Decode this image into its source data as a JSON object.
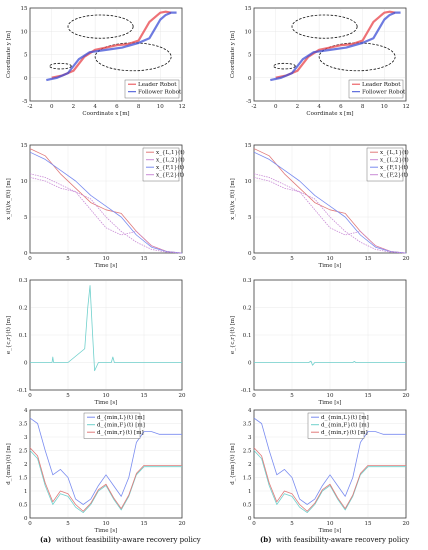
{
  "colors": {
    "leader": "#e8434a",
    "follower": "#3d4fd6",
    "c1": "#e07a7a",
    "c2": "#c98bd6",
    "c3": "#7a8cf0",
    "c4": "#6fd0cc"
  },
  "captions": [
    {
      "tag": "(a)",
      "text": "without feasibility-aware recovery policy"
    },
    {
      "tag": "(b)",
      "text": "with feasibility-aware recovery policy"
    }
  ],
  "chart_data": [
    {
      "id": "traj-a",
      "type": "line",
      "xlabel": "Coordinate x [m]",
      "ylabel": "Coordinate y [m]",
      "xlim": [
        -2,
        12
      ],
      "ylim": [
        -5,
        15
      ],
      "xticks": [
        "-2",
        "0",
        "2",
        "4",
        "6",
        "8",
        "10",
        "12"
      ],
      "yticks": [
        "-5",
        "0",
        "5",
        "10",
        "15"
      ],
      "legend": {
        "position": "bottom-right",
        "entries": [
          "Leader Robot",
          "Follower Robot"
        ]
      },
      "ellipses": [
        {
          "cx": 4.5,
          "cy": 11,
          "rx": 3,
          "ry": 2.5
        },
        {
          "cx": 7.5,
          "cy": 4.5,
          "rx": 3.5,
          "ry": 3
        },
        {
          "cx": 0.8,
          "cy": 2.5,
          "rx": 1,
          "ry": 0.6
        }
      ],
      "series": [
        {
          "name": "Leader Robot",
          "x": [
            0,
            1,
            2,
            2.5,
            3,
            4,
            5,
            6,
            7,
            8,
            8.5,
            9,
            9.5,
            10,
            10.5,
            11
          ],
          "y": [
            0,
            0.5,
            1.5,
            3,
            4.5,
            6,
            6.5,
            7,
            7.2,
            8,
            10,
            12,
            13,
            14,
            14.2,
            14
          ]
        },
        {
          "name": "Follower Robot",
          "x": [
            -0.5,
            0.5,
            1.5,
            2,
            2.5,
            3.5,
            5,
            6.5,
            8,
            9,
            9.5,
            10,
            10.5,
            11,
            11.5
          ],
          "y": [
            -0.5,
            0,
            1,
            2.5,
            4,
            5.5,
            6,
            6.5,
            7.5,
            8.5,
            10.5,
            12.5,
            13.5,
            14,
            14
          ]
        }
      ]
    },
    {
      "id": "traj-b",
      "type": "line",
      "xlabel": "Coordinate x [m]",
      "ylabel": "Coordinate y [m]",
      "xlim": [
        -2,
        12
      ],
      "ylim": [
        -5,
        15
      ],
      "xticks": [
        "-2",
        "0",
        "2",
        "4",
        "6",
        "8",
        "10",
        "12"
      ],
      "yticks": [
        "-5",
        "0",
        "5",
        "10",
        "15"
      ],
      "legend": {
        "position": "bottom-right",
        "entries": [
          "Leader Robot",
          "Follower Robot"
        ]
      },
      "ellipses": [
        {
          "cx": 4.5,
          "cy": 11,
          "rx": 3,
          "ry": 2.5
        },
        {
          "cx": 7.5,
          "cy": 4.5,
          "rx": 3.5,
          "ry": 3
        },
        {
          "cx": 0.8,
          "cy": 2.5,
          "rx": 1,
          "ry": 0.6
        }
      ],
      "series": [
        {
          "name": "Leader Robot",
          "x": [
            0,
            1,
            2,
            2.5,
            3,
            4,
            5,
            6,
            7,
            8,
            8.5,
            9,
            9.5,
            10,
            10.5,
            11
          ],
          "y": [
            0,
            0.5,
            1.5,
            3,
            4.5,
            6,
            6.5,
            7,
            7.2,
            8,
            10,
            12,
            13,
            14,
            14.2,
            14
          ]
        },
        {
          "name": "Follower Robot",
          "x": [
            -0.5,
            0.5,
            1.5,
            2,
            2.5,
            3.5,
            5,
            6.5,
            8,
            9,
            9.5,
            10,
            10.5,
            11,
            11.5
          ],
          "y": [
            -0.5,
            0,
            1,
            2.5,
            4,
            5.5,
            6,
            6.5,
            7.5,
            8.5,
            10.5,
            12.5,
            13.5,
            14,
            14
          ]
        }
      ]
    },
    {
      "id": "pos-a",
      "type": "line",
      "xlabel": "Time [s]",
      "ylabel": "x_i(t)/x_f(t) [m]",
      "xlim": [
        0,
        20
      ],
      "ylim": [
        0,
        15
      ],
      "xticks": [
        "0",
        "5",
        "10",
        "15",
        "20"
      ],
      "yticks": [
        "0",
        "5",
        "10",
        "15"
      ],
      "legend": {
        "position": "top-right",
        "entries": [
          "x_{L,1}(t)",
          "x_{L,2}(t)",
          "x_{F,1}(t)",
          "x_{F,2}(t)"
        ]
      },
      "series": [
        {
          "name": "x_{L,1}(t)",
          "x": [
            0,
            2,
            4,
            6,
            8,
            10,
            12,
            14,
            16,
            18,
            20
          ],
          "y": [
            14.5,
            13.5,
            11,
            9,
            7,
            6,
            5.5,
            3,
            1,
            0.2,
            0
          ]
        },
        {
          "name": "x_{L,2}(t)",
          "x": [
            0,
            2,
            4,
            6,
            8,
            10,
            12,
            14,
            16,
            18,
            20
          ],
          "y": [
            11,
            10.5,
            9.5,
            8.5,
            7.5,
            5,
            3,
            1.5,
            0.5,
            0.1,
            0
          ]
        },
        {
          "name": "x_{F,1}(t)",
          "x": [
            0,
            2,
            4,
            6,
            8,
            10,
            12,
            14,
            16,
            18,
            20
          ],
          "y": [
            14,
            13,
            11.5,
            10,
            8,
            6.5,
            5,
            2.5,
            0.8,
            0.2,
            0
          ]
        },
        {
          "name": "x_{F,2}(t)",
          "x": [
            0,
            2,
            4,
            6,
            8,
            10,
            12,
            14,
            16,
            18,
            20
          ],
          "y": [
            10.5,
            10,
            9,
            8.5,
            6,
            3.5,
            2.5,
            3,
            1,
            0.2,
            0
          ]
        }
      ]
    },
    {
      "id": "pos-b",
      "type": "line",
      "xlabel": "Time [s]",
      "ylabel": "x_i(t)/x_f(t) [m]",
      "xlim": [
        0,
        20
      ],
      "ylim": [
        0,
        15
      ],
      "xticks": [
        "0",
        "5",
        "10",
        "15",
        "20"
      ],
      "yticks": [
        "0",
        "5",
        "10",
        "15"
      ],
      "legend": {
        "position": "top-right",
        "entries": [
          "x_{L,1}(t)",
          "x_{L,2}(t)",
          "x_{F,1}(t)",
          "x_{F,2}(t)"
        ]
      },
      "series": [
        {
          "name": "x_{L,1}(t)",
          "x": [
            0,
            2,
            4,
            6,
            8,
            10,
            12,
            14,
            16,
            18,
            20
          ],
          "y": [
            14.5,
            13.5,
            11,
            9,
            7,
            6,
            5.5,
            3,
            1,
            0.2,
            0
          ]
        },
        {
          "name": "x_{L,2}(t)",
          "x": [
            0,
            2,
            4,
            6,
            8,
            10,
            12,
            14,
            16,
            18,
            20
          ],
          "y": [
            11,
            10.5,
            9.5,
            8.5,
            7.5,
            5,
            3,
            1.5,
            0.5,
            0.1,
            0
          ]
        },
        {
          "name": "x_{F,1}(t)",
          "x": [
            0,
            2,
            4,
            6,
            8,
            10,
            12,
            14,
            16,
            18,
            20
          ],
          "y": [
            14,
            13,
            11.5,
            10,
            8,
            6.5,
            5,
            2.5,
            0.8,
            0.2,
            0
          ]
        },
        {
          "name": "x_{F,2}(t)",
          "x": [
            0,
            2,
            4,
            6,
            8,
            10,
            12,
            14,
            16,
            18,
            20
          ],
          "y": [
            10.5,
            10,
            9,
            8.5,
            6,
            3.5,
            2.5,
            3,
            1,
            0.2,
            0
          ]
        }
      ]
    },
    {
      "id": "err-a",
      "type": "line",
      "xlabel": "Time [s]",
      "ylabel": "e_{c,r}(t) [m]",
      "xlim": [
        0,
        20
      ],
      "ylim": [
        -0.1,
        0.3
      ],
      "xticks": [
        "0",
        "5",
        "10",
        "15",
        "20"
      ],
      "yticks": [
        "-0.1",
        "0",
        "0.1",
        "0.2",
        "0.3"
      ],
      "series": [
        {
          "x": [
            0,
            2.9,
            3,
            3.1,
            5,
            7.2,
            7.6,
            7.9,
            8.2,
            8.5,
            9,
            10.7,
            10.9,
            11.1,
            13,
            20
          ],
          "y": [
            0,
            0,
            0.02,
            0,
            0,
            0.05,
            0.2,
            0.28,
            0.12,
            -0.03,
            0,
            0,
            0.02,
            0,
            0,
            0
          ]
        }
      ]
    },
    {
      "id": "err-b",
      "type": "line",
      "xlabel": "Time [s]",
      "ylabel": "e_{c,r}(t) [m]",
      "xlim": [
        0,
        20
      ],
      "ylim": [
        -0.1,
        0.3
      ],
      "xticks": [
        "0",
        "5",
        "10",
        "15",
        "20"
      ],
      "yticks": [
        "-0.1",
        "0",
        "0.1",
        "0.2",
        "0.3"
      ],
      "series": [
        {
          "x": [
            0,
            7.2,
            7.5,
            7.7,
            8,
            13,
            13.2,
            13.4,
            20
          ],
          "y": [
            0,
            0,
            0.005,
            -0.01,
            0,
            0,
            0.004,
            0,
            0
          ]
        }
      ]
    },
    {
      "id": "dist-a",
      "type": "line",
      "xlabel": "Time [s]",
      "ylabel": "d_{min}(t) [m]",
      "xlim": [
        0,
        20
      ],
      "ylim": [
        0,
        4
      ],
      "xticks": [
        "0",
        "5",
        "10",
        "15",
        "20"
      ],
      "yticks": [
        "0",
        "0.5",
        "1",
        "1.5",
        "2",
        "2.5",
        "3",
        "3.5",
        "4"
      ],
      "legend": {
        "position": "top-center",
        "entries": [
          "d_{min,L}(t) [m]",
          "d_{min,F}(t) [m]",
          "d_{min,r}(t) [m]"
        ]
      },
      "series": [
        {
          "name": "d_{min,L}(t) [m]",
          "x": [
            0,
            1,
            2,
            3,
            4,
            5,
            6,
            7,
            8,
            9,
            10,
            11,
            12,
            13,
            14,
            15,
            16,
            17,
            18,
            19,
            20
          ],
          "y": [
            3.7,
            3.5,
            2.5,
            1.6,
            1.8,
            1.5,
            0.7,
            0.5,
            0.7,
            1.2,
            1.6,
            1.2,
            0.8,
            1.5,
            2.8,
            3.2,
            3.2,
            3.1,
            3.1,
            3.1,
            3.1
          ]
        },
        {
          "name": "d_{min,F}(t) [m]",
          "x": [
            0,
            1,
            2,
            3,
            4,
            5,
            6,
            7,
            8,
            9,
            10,
            11,
            12,
            13,
            14,
            15,
            16,
            17,
            18,
            19,
            20
          ],
          "y": [
            2.5,
            2.2,
            1.2,
            0.5,
            0.9,
            0.8,
            0.4,
            0.2,
            0.5,
            1,
            1.2,
            0.7,
            0.3,
            0.8,
            1.6,
            1.9,
            1.9,
            1.9,
            1.9,
            1.9,
            1.9
          ]
        },
        {
          "name": "d_{min,r}(t) [m]",
          "x": [
            0,
            1,
            2,
            3,
            4,
            5,
            6,
            7,
            8,
            9,
            10,
            11,
            12,
            13,
            14,
            15,
            16,
            17,
            18,
            19,
            20
          ],
          "y": [
            2.6,
            2.3,
            1.3,
            0.6,
            1,
            0.9,
            0.5,
            0.25,
            0.55,
            1.05,
            1.25,
            0.75,
            0.35,
            0.85,
            1.65,
            1.95,
            1.95,
            1.95,
            1.95,
            1.95,
            1.95
          ]
        }
      ]
    },
    {
      "id": "dist-b",
      "type": "line",
      "xlabel": "Time [s]",
      "ylabel": "d_{min}(t) [m]",
      "xlim": [
        0,
        20
      ],
      "ylim": [
        0,
        4
      ],
      "xticks": [
        "0",
        "5",
        "10",
        "15",
        "20"
      ],
      "yticks": [
        "0",
        "0.5",
        "1",
        "1.5",
        "2",
        "2.5",
        "3",
        "3.5",
        "4"
      ],
      "legend": {
        "position": "top-center",
        "entries": [
          "d_{min,L}(t) [m]",
          "d_{min,F}(t) [m]",
          "d_{min,r}(t) [m]"
        ]
      },
      "series": [
        {
          "name": "d_{min,L}(t) [m]",
          "x": [
            0,
            1,
            2,
            3,
            4,
            5,
            6,
            7,
            8,
            9,
            10,
            11,
            12,
            13,
            14,
            15,
            16,
            17,
            18,
            19,
            20
          ],
          "y": [
            3.7,
            3.5,
            2.5,
            1.6,
            1.8,
            1.5,
            0.7,
            0.5,
            0.7,
            1.2,
            1.6,
            1.2,
            0.8,
            1.5,
            2.8,
            3.2,
            3.2,
            3.1,
            3.1,
            3.1,
            3.1
          ]
        },
        {
          "name": "d_{min,F}(t) [m]",
          "x": [
            0,
            1,
            2,
            3,
            4,
            5,
            6,
            7,
            8,
            9,
            10,
            11,
            12,
            13,
            14,
            15,
            16,
            17,
            18,
            19,
            20
          ],
          "y": [
            2.5,
            2.2,
            1.2,
            0.5,
            0.9,
            0.8,
            0.4,
            0.2,
            0.5,
            1,
            1.2,
            0.7,
            0.3,
            0.8,
            1.6,
            1.9,
            1.9,
            1.9,
            1.9,
            1.9,
            1.9
          ]
        },
        {
          "name": "d_{min,r}(t) [m]",
          "x": [
            0,
            1,
            2,
            3,
            4,
            5,
            6,
            7,
            8,
            9,
            10,
            11,
            12,
            13,
            14,
            15,
            16,
            17,
            18,
            19,
            20
          ],
          "y": [
            2.6,
            2.3,
            1.3,
            0.6,
            1,
            0.9,
            0.5,
            0.25,
            0.55,
            1.05,
            1.25,
            0.75,
            0.35,
            0.85,
            1.65,
            1.95,
            1.95,
            1.95,
            1.95,
            1.95,
            1.95
          ]
        }
      ]
    }
  ]
}
